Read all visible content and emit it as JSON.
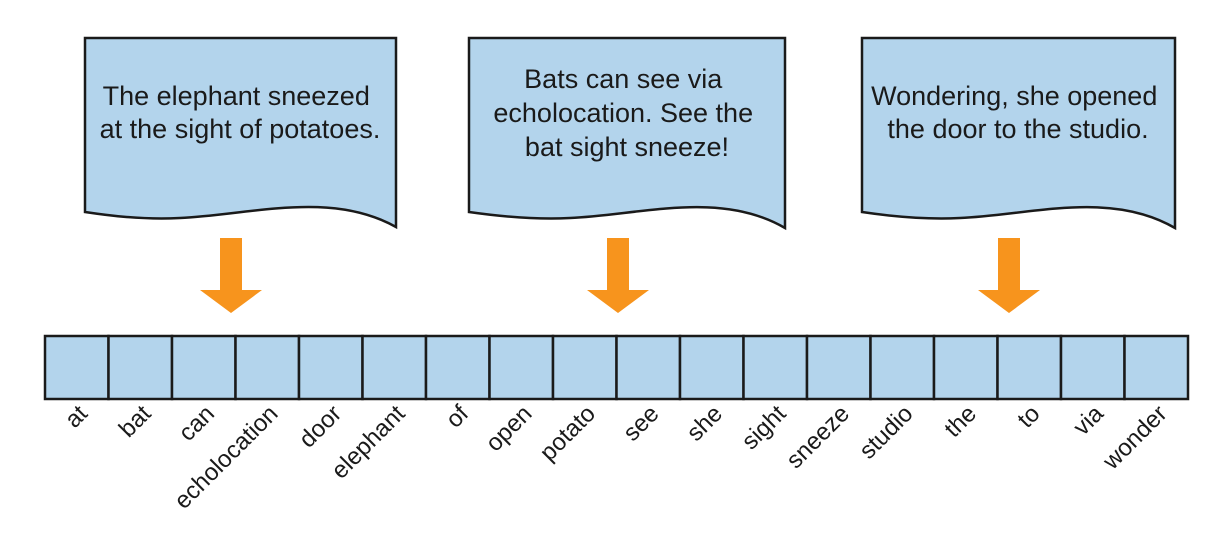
{
  "documents": [
    {
      "lines": [
        "The elephant sneezed",
        "at the sight of potatoes."
      ]
    },
    {
      "lines": [
        "Bats can see via",
        "echolocation. See the",
        "bat sight sneeze!"
      ]
    },
    {
      "lines": [
        "Wondering, she opened",
        "the door to the studio."
      ]
    }
  ],
  "vocabulary": [
    "at",
    "bat",
    "can",
    "echolocation",
    "door",
    "elephant",
    "of",
    "open",
    "potato",
    "see",
    "she",
    "sight",
    "sneeze",
    "studio",
    "the",
    "to",
    "via",
    "wonder"
  ],
  "colors": {
    "document_fill": "#b3d4ec",
    "cell_fill": "#b3d4ec",
    "arrow": "#f7941d",
    "outline": "#1a1a1a"
  }
}
